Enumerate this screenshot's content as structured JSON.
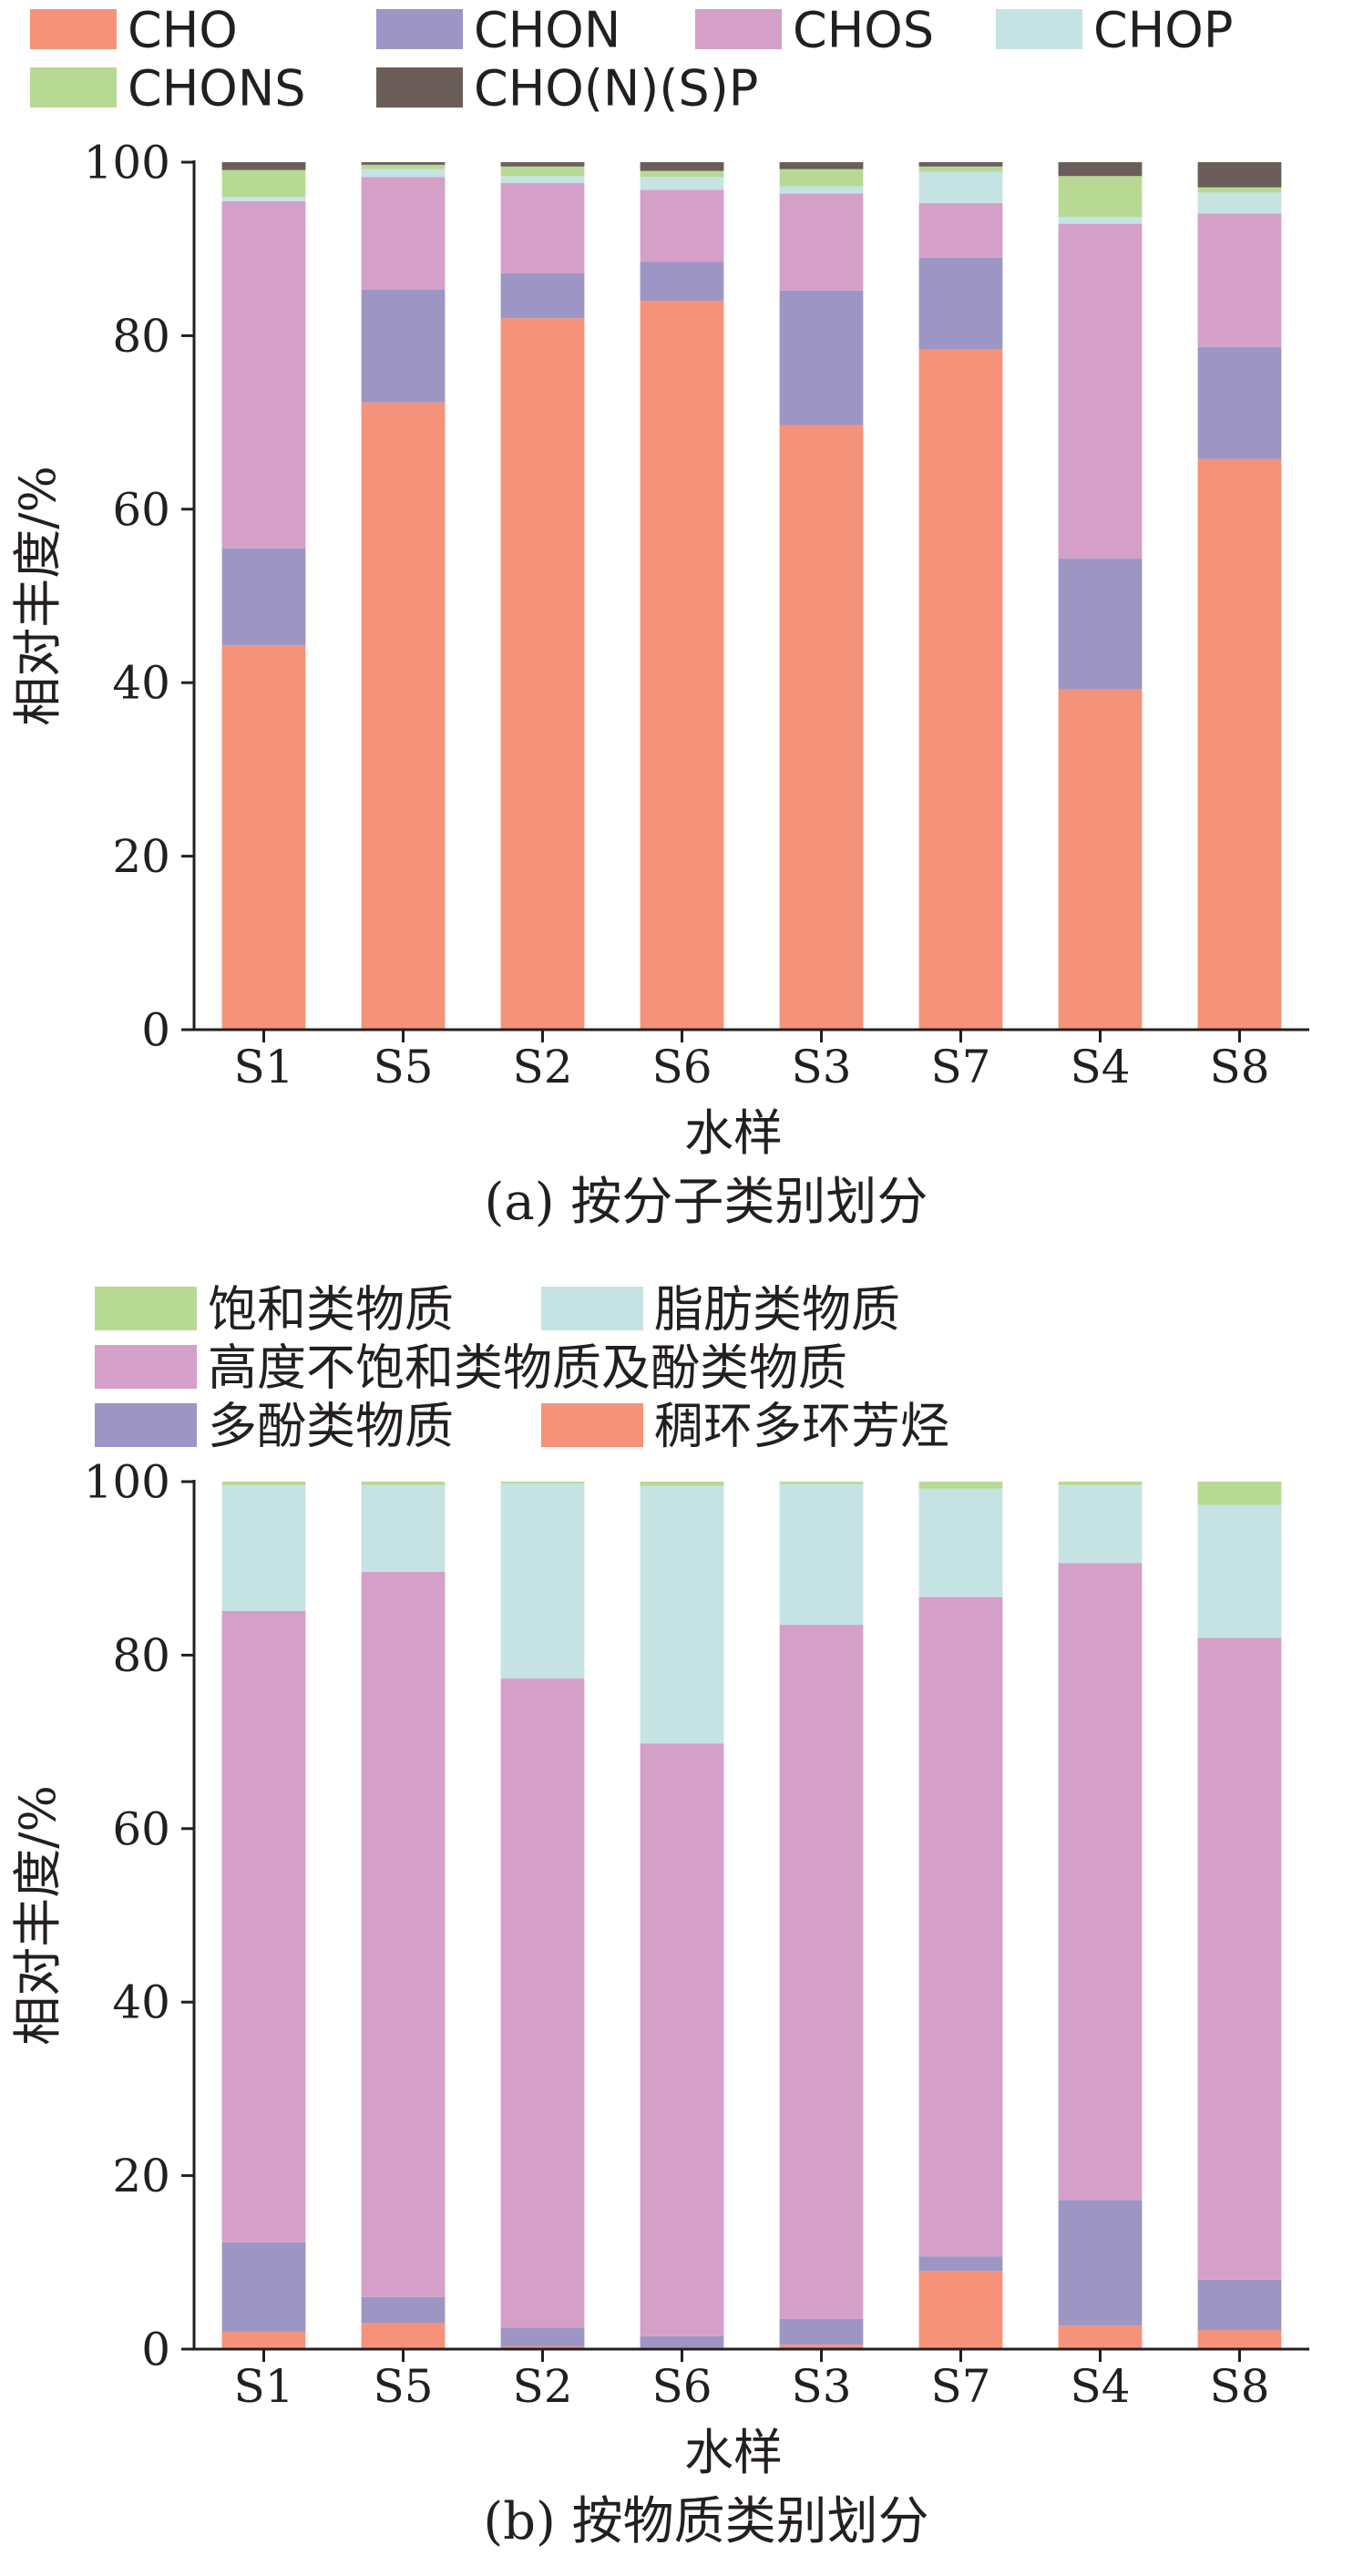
{
  "chart_data": [
    {
      "type": "bar",
      "stacked": true,
      "caption": "(a) 按分子类别划分",
      "xlabel": "水样",
      "ylabel": "相对丰度/%",
      "ylim": [
        0,
        100
      ],
      "yticks": [
        0,
        20,
        40,
        60,
        80,
        100
      ],
      "grid": false,
      "legend_position": "top",
      "categories": [
        "S1",
        "S5",
        "S2",
        "S6",
        "S3",
        "S7",
        "S4",
        "S8"
      ],
      "series": [
        {
          "name": "CHO",
          "color": "#f4937a",
          "values": [
            44.3,
            72.3,
            82.0,
            84.0,
            69.7,
            78.4,
            39.2,
            65.8
          ]
        },
        {
          "name": "CHON",
          "color": "#9d96c4",
          "values": [
            11.2,
            13.0,
            5.2,
            4.5,
            15.5,
            10.6,
            15.1,
            12.9
          ]
        },
        {
          "name": "CHOS",
          "color": "#d4a0c8",
          "values": [
            40.0,
            13.0,
            10.4,
            8.3,
            11.2,
            6.3,
            38.6,
            15.4
          ]
        },
        {
          "name": "CHOP",
          "color": "#c6e3e3",
          "values": [
            0.5,
            0.9,
            0.8,
            1.5,
            0.8,
            3.6,
            0.8,
            2.4
          ]
        },
        {
          "name": "CHONS",
          "color": "#b8d994",
          "values": [
            3.1,
            0.5,
            1.1,
            0.7,
            2.0,
            0.6,
            4.7,
            0.6
          ]
        },
        {
          "name": "CHO(N)(S)P",
          "color": "#6b5e5a",
          "values": [
            0.9,
            0.3,
            0.5,
            1.0,
            0.8,
            0.5,
            1.6,
            2.9
          ]
        }
      ]
    },
    {
      "type": "bar",
      "stacked": true,
      "caption": "(b) 按物质类别划分",
      "xlabel": "水样",
      "ylabel": "相对丰度/%",
      "ylim": [
        0,
        100
      ],
      "yticks": [
        0,
        20,
        40,
        60,
        80,
        100
      ],
      "grid": false,
      "legend_position": "top",
      "categories": [
        "S1",
        "S5",
        "S2",
        "S6",
        "S3",
        "S7",
        "S4",
        "S8"
      ],
      "series": [
        {
          "name": "稠环多环芳烃",
          "color": "#f4937a",
          "values": [
            2.0,
            3.0,
            0.3,
            0.2,
            0.5,
            9.0,
            2.7,
            2.2
          ]
        },
        {
          "name": "多酚类物质",
          "color": "#9d96c4",
          "values": [
            10.3,
            3.0,
            2.2,
            1.3,
            3.0,
            1.7,
            14.5,
            5.8
          ]
        },
        {
          "name": "高度不饱和类物质及酚类物质",
          "color": "#d4a0c8",
          "values": [
            72.8,
            83.6,
            74.8,
            68.3,
            80.0,
            76.0,
            73.4,
            74.0
          ]
        },
        {
          "name": "脂肪类物质",
          "color": "#c6e3e3",
          "values": [
            14.5,
            10.0,
            22.5,
            29.7,
            16.2,
            12.5,
            9.0,
            15.3
          ]
        },
        {
          "name": "饱和类物质",
          "color": "#b8d994",
          "values": [
            0.4,
            0.4,
            0.2,
            0.5,
            0.3,
            0.8,
            0.4,
            2.7
          ]
        }
      ]
    }
  ],
  "legend_a": [
    [
      "CHO",
      "CHON",
      "CHOS",
      "CHOP"
    ],
    [
      "CHONS",
      "CHO(N)(S)P"
    ]
  ],
  "legend_b": [
    [
      "饱和类物质",
      "脂肪类物质"
    ],
    [
      "高度不饱和类物质及酚类物质"
    ],
    [
      "多酚类物质",
      "稠环多环芳烃"
    ]
  ]
}
